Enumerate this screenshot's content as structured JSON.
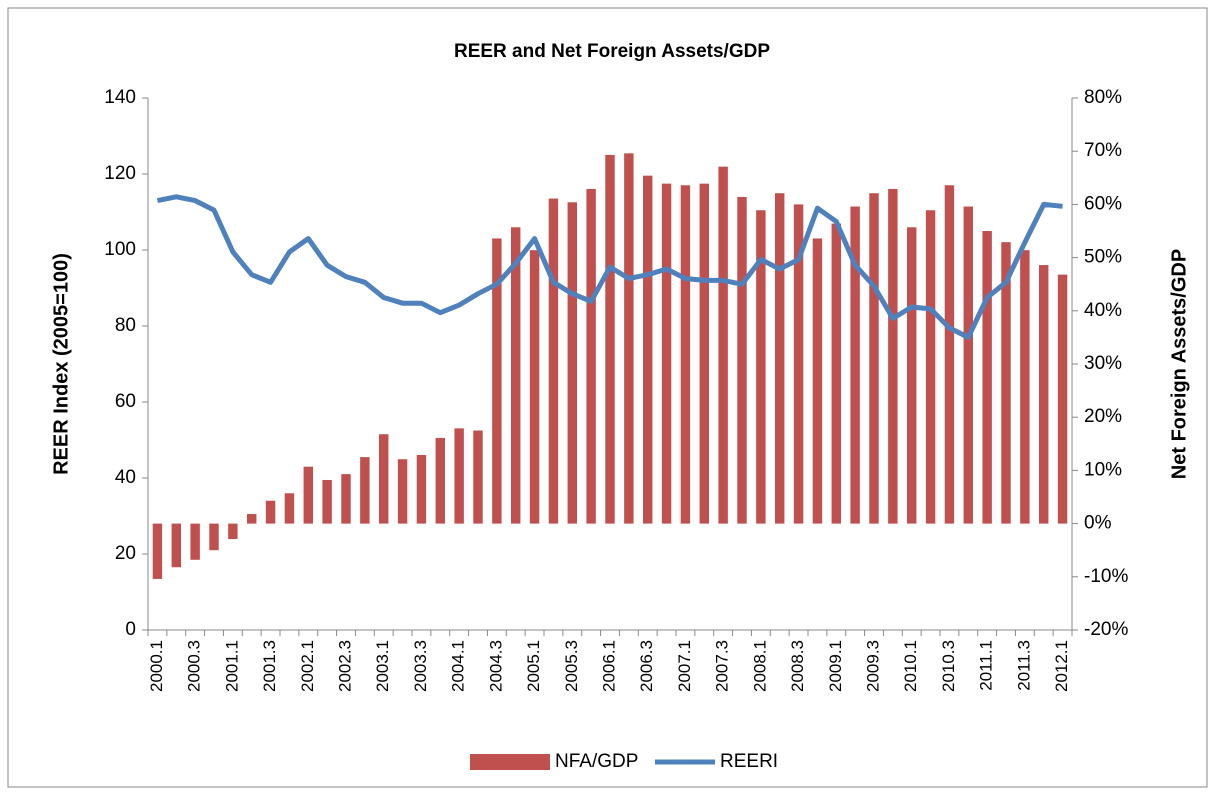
{
  "chart_data": {
    "type": "bar-line",
    "title": "REER and Net Foreign Assets/GDP",
    "ylabel": "REER Index (2005=100)",
    "y2label": "Net Foreign Assets/GDP",
    "categories": [
      "2000.1",
      null,
      "2000.3",
      null,
      "2001.1",
      null,
      "2001.3",
      null,
      "2002.1",
      null,
      "2002.3",
      null,
      "2003.1",
      null,
      "2003.3",
      null,
      "2004.1",
      null,
      "2004.3",
      null,
      "2005.1",
      null,
      "2005.3",
      null,
      "2006.1",
      null,
      "2006.3",
      null,
      "2007.1",
      null,
      "2007.3",
      null,
      "2008.1",
      null,
      "2008.3",
      null,
      "2009.1",
      null,
      "2009.3",
      null,
      "2010.1",
      null,
      "2010.3",
      null,
      "2011.1",
      null,
      "2011.3",
      null,
      "2012.1"
    ],
    "series": [
      {
        "name": "NFA/GDP",
        "type": "bar",
        "axis": "y2",
        "color": "#c0504d",
        "values": [
          -10.4,
          -8.2,
          -6.8,
          -5.0,
          -2.9,
          1.8,
          4.3,
          5.7,
          10.7,
          8.2,
          9.3,
          12.5,
          16.8,
          12.1,
          12.9,
          16.1,
          17.9,
          17.5,
          53.6,
          55.7,
          51.4,
          61.1,
          60.4,
          62.9,
          69.3,
          69.6,
          65.4,
          63.9,
          63.6,
          63.9,
          67.1,
          61.4,
          58.9,
          62.1,
          60.0,
          53.6,
          56.4,
          59.6,
          62.1,
          62.9,
          55.7,
          58.9,
          63.6,
          59.6,
          55.0,
          52.9,
          51.4,
          48.6,
          46.8
        ]
      },
      {
        "name": "REERI",
        "type": "line",
        "axis": "y",
        "color": "#4f81bd",
        "values": [
          113,
          114,
          113,
          110.5,
          99.5,
          93.5,
          91.5,
          99.5,
          103,
          96,
          93,
          91.5,
          87.5,
          86,
          86,
          83.5,
          85.5,
          88.5,
          91,
          96.5,
          103,
          91.5,
          88.5,
          86.5,
          95.5,
          92.5,
          93.5,
          95,
          92.5,
          92,
          92,
          91,
          97.5,
          95,
          97.5,
          111,
          107.5,
          96,
          90.5,
          82,
          85,
          84.5,
          79.5,
          77,
          87.5,
          91.5,
          102,
          112,
          111.5
        ]
      }
    ],
    "ylim": [
      0,
      140
    ],
    "yticks": [
      0,
      20,
      40,
      60,
      80,
      100,
      120,
      140
    ],
    "y2lim": [
      -20,
      80
    ],
    "y2ticks": [
      {
        "value": -20,
        "label": "-20%"
      },
      {
        "value": -10,
        "label": "-10%"
      },
      {
        "value": 0,
        "label": "0%"
      },
      {
        "value": 10,
        "label": "10%"
      },
      {
        "value": 20,
        "label": "20%"
      },
      {
        "value": 30,
        "label": "30%"
      },
      {
        "value": 40,
        "label": "40%"
      },
      {
        "value": 50,
        "label": "50%"
      },
      {
        "value": 60,
        "label": "60%"
      },
      {
        "value": 70,
        "label": "70%"
      },
      {
        "value": 80,
        "label": "80%"
      }
    ],
    "grid": false,
    "legend": "bottom"
  }
}
